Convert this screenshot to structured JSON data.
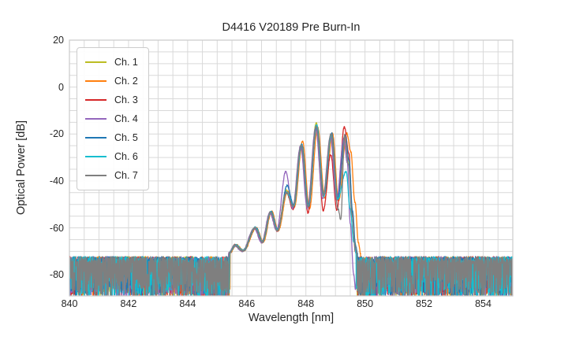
{
  "chart_data": {
    "type": "line",
    "title": "D4416 V20189 Pre Burn-In",
    "xlabel": "Wavelength [nm]",
    "ylabel": "Optical Power [dB]",
    "xlim": [
      840,
      855
    ],
    "ylim": [
      -89,
      20
    ],
    "xticks": [
      840,
      842,
      844,
      846,
      848,
      850,
      852,
      854
    ],
    "yticks": [
      20,
      0,
      -20,
      -40,
      -60,
      -80
    ],
    "grid": {
      "on": true,
      "x_step_nm": 0.5,
      "y_step_db": 5,
      "color": "#d9d9d9",
      "spine_color": "#cccccc"
    },
    "background": "#ffffff",
    "text_color": "#262626",
    "legend": {
      "position": "upper-left",
      "border_color": "#cccccc"
    },
    "noise_floor": {
      "mean_db": -73.8,
      "top_variation_db": 1.6,
      "spike_probability": 0.5,
      "spike_depth_min_db": 3,
      "spike_depth_max_db": 16,
      "floor_bottom_clip_db": -88.7,
      "dense_spike_zones_nm": [
        [
          844.2,
          845.58
        ],
        [
          849.8,
          850.35
        ]
      ],
      "signal_jitter_db": 0.35
    },
    "series": [
      {
        "name": "Ch. 1",
        "color": "#bcbd22",
        "keypoints": [
          [
            845.4,
            -70.8
          ],
          [
            845.6,
            -67.4
          ],
          [
            845.86,
            -69.8
          ],
          [
            846.28,
            -60.2
          ],
          [
            846.52,
            -66.2
          ],
          [
            846.8,
            -53.5
          ],
          [
            847.03,
            -61.2
          ],
          [
            847.34,
            -44.0
          ],
          [
            847.57,
            -50.6
          ],
          [
            847.84,
            -24.8
          ],
          [
            848.07,
            -50.5
          ],
          [
            848.35,
            -15.4
          ],
          [
            848.59,
            -46.0
          ],
          [
            848.85,
            -20.8
          ],
          [
            849.06,
            -47.5
          ],
          [
            849.3,
            -21.5
          ],
          [
            849.44,
            -31.0
          ],
          [
            849.56,
            -52.0
          ],
          [
            849.66,
            -66.0
          ],
          [
            849.73,
            -70.8
          ]
        ]
      },
      {
        "name": "Ch. 2",
        "color": "#ff7f0e",
        "keypoints": [
          [
            845.44,
            -70.6
          ],
          [
            845.64,
            -67.2
          ],
          [
            845.9,
            -69.7
          ],
          [
            846.32,
            -60.0
          ],
          [
            846.56,
            -66.0
          ],
          [
            846.84,
            -53.0
          ],
          [
            847.07,
            -61.0
          ],
          [
            847.38,
            -44.5
          ],
          [
            847.61,
            -51.2
          ],
          [
            847.89,
            -23.2
          ],
          [
            848.12,
            -52.0
          ],
          [
            848.4,
            -17.2
          ],
          [
            848.64,
            -47.2
          ],
          [
            848.9,
            -19.8
          ],
          [
            849.11,
            -48.5
          ],
          [
            849.38,
            -19.6
          ],
          [
            849.52,
            -27.5
          ],
          [
            849.66,
            -49.0
          ],
          [
            849.78,
            -66.5
          ],
          [
            849.85,
            -71.0
          ]
        ]
      },
      {
        "name": "Ch. 3",
        "color": "#d62728",
        "keypoints": [
          [
            845.4,
            -70.7
          ],
          [
            845.6,
            -67.3
          ],
          [
            845.86,
            -69.9
          ],
          [
            846.28,
            -60.1
          ],
          [
            846.52,
            -66.1
          ],
          [
            846.8,
            -53.4
          ],
          [
            847.03,
            -61.3
          ],
          [
            847.34,
            -44.8
          ],
          [
            847.57,
            -52.2
          ],
          [
            847.84,
            -25.0
          ],
          [
            848.07,
            -53.6
          ],
          [
            848.35,
            -17.8
          ],
          [
            848.59,
            -52.6
          ],
          [
            848.84,
            -28.8
          ],
          [
            849.05,
            -52.4
          ],
          [
            849.3,
            -16.9
          ],
          [
            849.45,
            -28.0
          ],
          [
            849.57,
            -55.0
          ],
          [
            849.67,
            -70.0
          ],
          [
            849.74,
            -71.2
          ]
        ]
      },
      {
        "name": "Ch. 4",
        "color": "#9467bd",
        "keypoints": [
          [
            845.38,
            -70.8
          ],
          [
            845.58,
            -67.5
          ],
          [
            845.84,
            -69.9
          ],
          [
            846.26,
            -60.3
          ],
          [
            846.5,
            -66.3
          ],
          [
            846.78,
            -53.6
          ],
          [
            847.01,
            -61.0
          ],
          [
            847.32,
            -36.0
          ],
          [
            847.55,
            -51.6
          ],
          [
            847.82,
            -25.2
          ],
          [
            848.05,
            -51.6
          ],
          [
            848.33,
            -17.4
          ],
          [
            848.57,
            -47.6
          ],
          [
            848.83,
            -21.2
          ],
          [
            849.04,
            -48.2
          ],
          [
            849.28,
            -22.0
          ],
          [
            849.4,
            -32.0
          ],
          [
            849.5,
            -58.0
          ],
          [
            849.62,
            -80.0
          ],
          [
            849.68,
            -86.5
          ],
          [
            849.73,
            -73.5
          ]
        ]
      },
      {
        "name": "Ch. 5",
        "color": "#1f77b4",
        "keypoints": [
          [
            845.42,
            -70.7
          ],
          [
            845.62,
            -67.3
          ],
          [
            845.88,
            -69.7
          ],
          [
            846.3,
            -59.8
          ],
          [
            846.54,
            -65.8
          ],
          [
            846.82,
            -53.1
          ],
          [
            847.05,
            -60.8
          ],
          [
            847.36,
            -42.0
          ],
          [
            847.59,
            -50.4
          ],
          [
            847.86,
            -24.4
          ],
          [
            848.09,
            -50.8
          ],
          [
            848.37,
            -16.4
          ],
          [
            848.61,
            -46.4
          ],
          [
            848.87,
            -19.6
          ],
          [
            849.08,
            -47.6
          ],
          [
            849.33,
            -20.8
          ],
          [
            849.46,
            -31.5
          ],
          [
            849.58,
            -53.0
          ],
          [
            849.68,
            -67.5
          ],
          [
            849.75,
            -71.0
          ]
        ]
      },
      {
        "name": "Ch. 6",
        "color": "#17becf",
        "keypoints": [
          [
            845.41,
            -70.6
          ],
          [
            845.61,
            -67.2
          ],
          [
            845.87,
            -69.6
          ],
          [
            846.29,
            -59.9
          ],
          [
            846.53,
            -65.9
          ],
          [
            846.81,
            -53.2
          ],
          [
            847.04,
            -60.9
          ],
          [
            847.35,
            -44.6
          ],
          [
            847.58,
            -50.9
          ],
          [
            847.85,
            -24.6
          ],
          [
            848.08,
            -51.0
          ],
          [
            848.36,
            -16.0
          ],
          [
            848.6,
            -46.6
          ],
          [
            848.86,
            -20.2
          ],
          [
            849.07,
            -47.8
          ],
          [
            849.36,
            -36.0
          ],
          [
            849.5,
            -52.0
          ],
          [
            849.62,
            -66.0
          ],
          [
            849.7,
            -70.8
          ]
        ]
      },
      {
        "name": "Ch. 7",
        "color": "#7f7f7f",
        "keypoints": [
          [
            845.4,
            -70.9
          ],
          [
            845.6,
            -67.4
          ],
          [
            845.86,
            -69.8
          ],
          [
            846.28,
            -60.0
          ],
          [
            846.52,
            -66.0
          ],
          [
            846.8,
            -53.3
          ],
          [
            847.03,
            -61.1
          ],
          [
            847.34,
            -45.0
          ],
          [
            847.57,
            -50.7
          ],
          [
            847.84,
            -24.7
          ],
          [
            848.07,
            -50.9
          ],
          [
            848.35,
            -16.6
          ],
          [
            848.59,
            -46.2
          ],
          [
            848.85,
            -19.9
          ],
          [
            849.09,
            -52.0
          ],
          [
            849.18,
            -56.5
          ],
          [
            849.31,
            -20.3
          ],
          [
            849.44,
            -33.0
          ],
          [
            849.56,
            -54.0
          ],
          [
            849.66,
            -68.0
          ],
          [
            849.73,
            -71.0
          ]
        ]
      }
    ]
  }
}
